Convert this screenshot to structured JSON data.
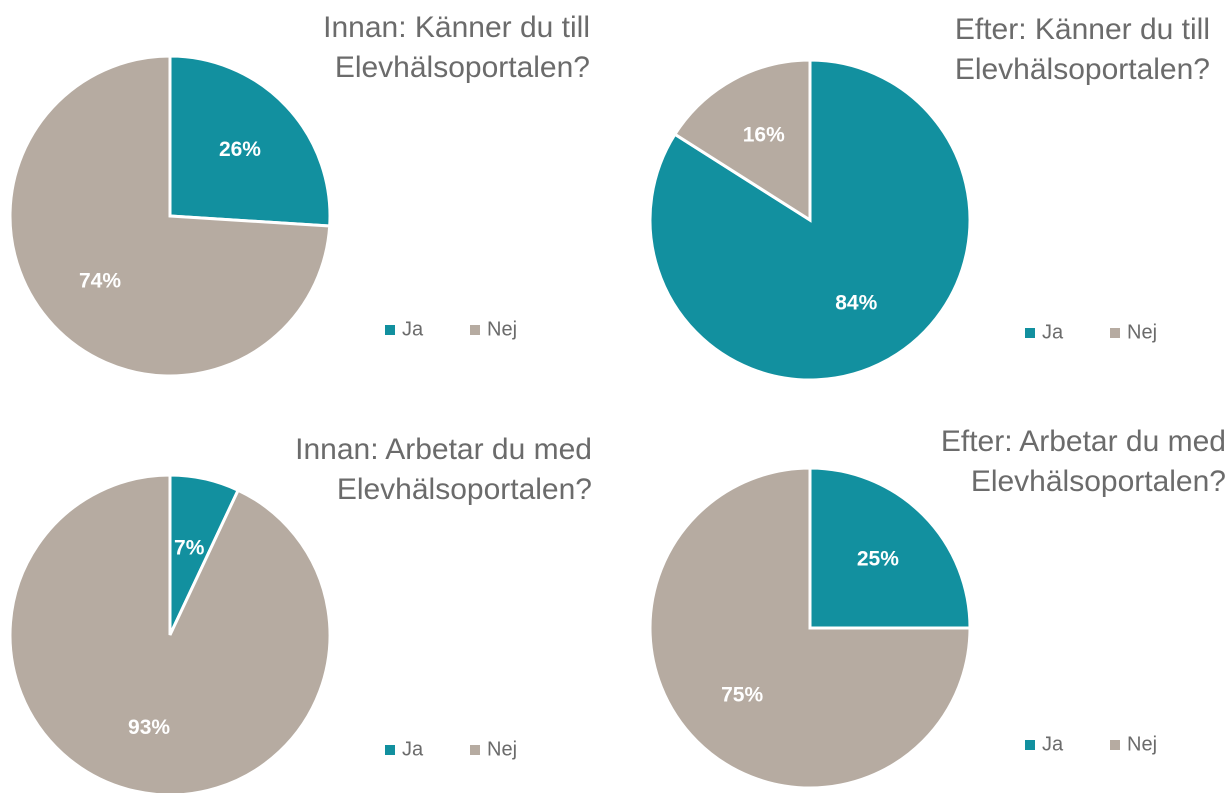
{
  "chart_data": [
    {
      "type": "pie",
      "title": "Innan: Känner du till Elevhälsoportalen?",
      "categories": [
        "Ja",
        "Nej"
      ],
      "values": [
        26,
        74
      ],
      "value_labels": [
        "26%",
        "74%"
      ],
      "colors": [
        "#12909f",
        "#b6aba1"
      ],
      "legend": "right"
    },
    {
      "type": "pie",
      "title": "Efter: Känner du till Elevhälsoportalen?",
      "categories": [
        "Ja",
        "Nej"
      ],
      "values": [
        84,
        16
      ],
      "value_labels": [
        "84%",
        "16%"
      ],
      "colors": [
        "#12909f",
        "#b6aba1"
      ],
      "legend": "right"
    },
    {
      "type": "pie",
      "title": "Innan: Arbetar du med Elevhälsoportalen?",
      "categories": [
        "Ja",
        "Nej"
      ],
      "values": [
        7,
        93
      ],
      "value_labels": [
        "7%",
        "93%"
      ],
      "colors": [
        "#12909f",
        "#b6aba1"
      ],
      "legend": "right"
    },
    {
      "type": "pie",
      "title": "Efter: Arbetar du med Elevhälsoportalen?",
      "categories": [
        "Ja",
        "Nej"
      ],
      "values": [
        25,
        75
      ],
      "value_labels": [
        "25%",
        "75%"
      ],
      "colors": [
        "#12909f",
        "#b6aba1"
      ],
      "legend": "right"
    }
  ]
}
